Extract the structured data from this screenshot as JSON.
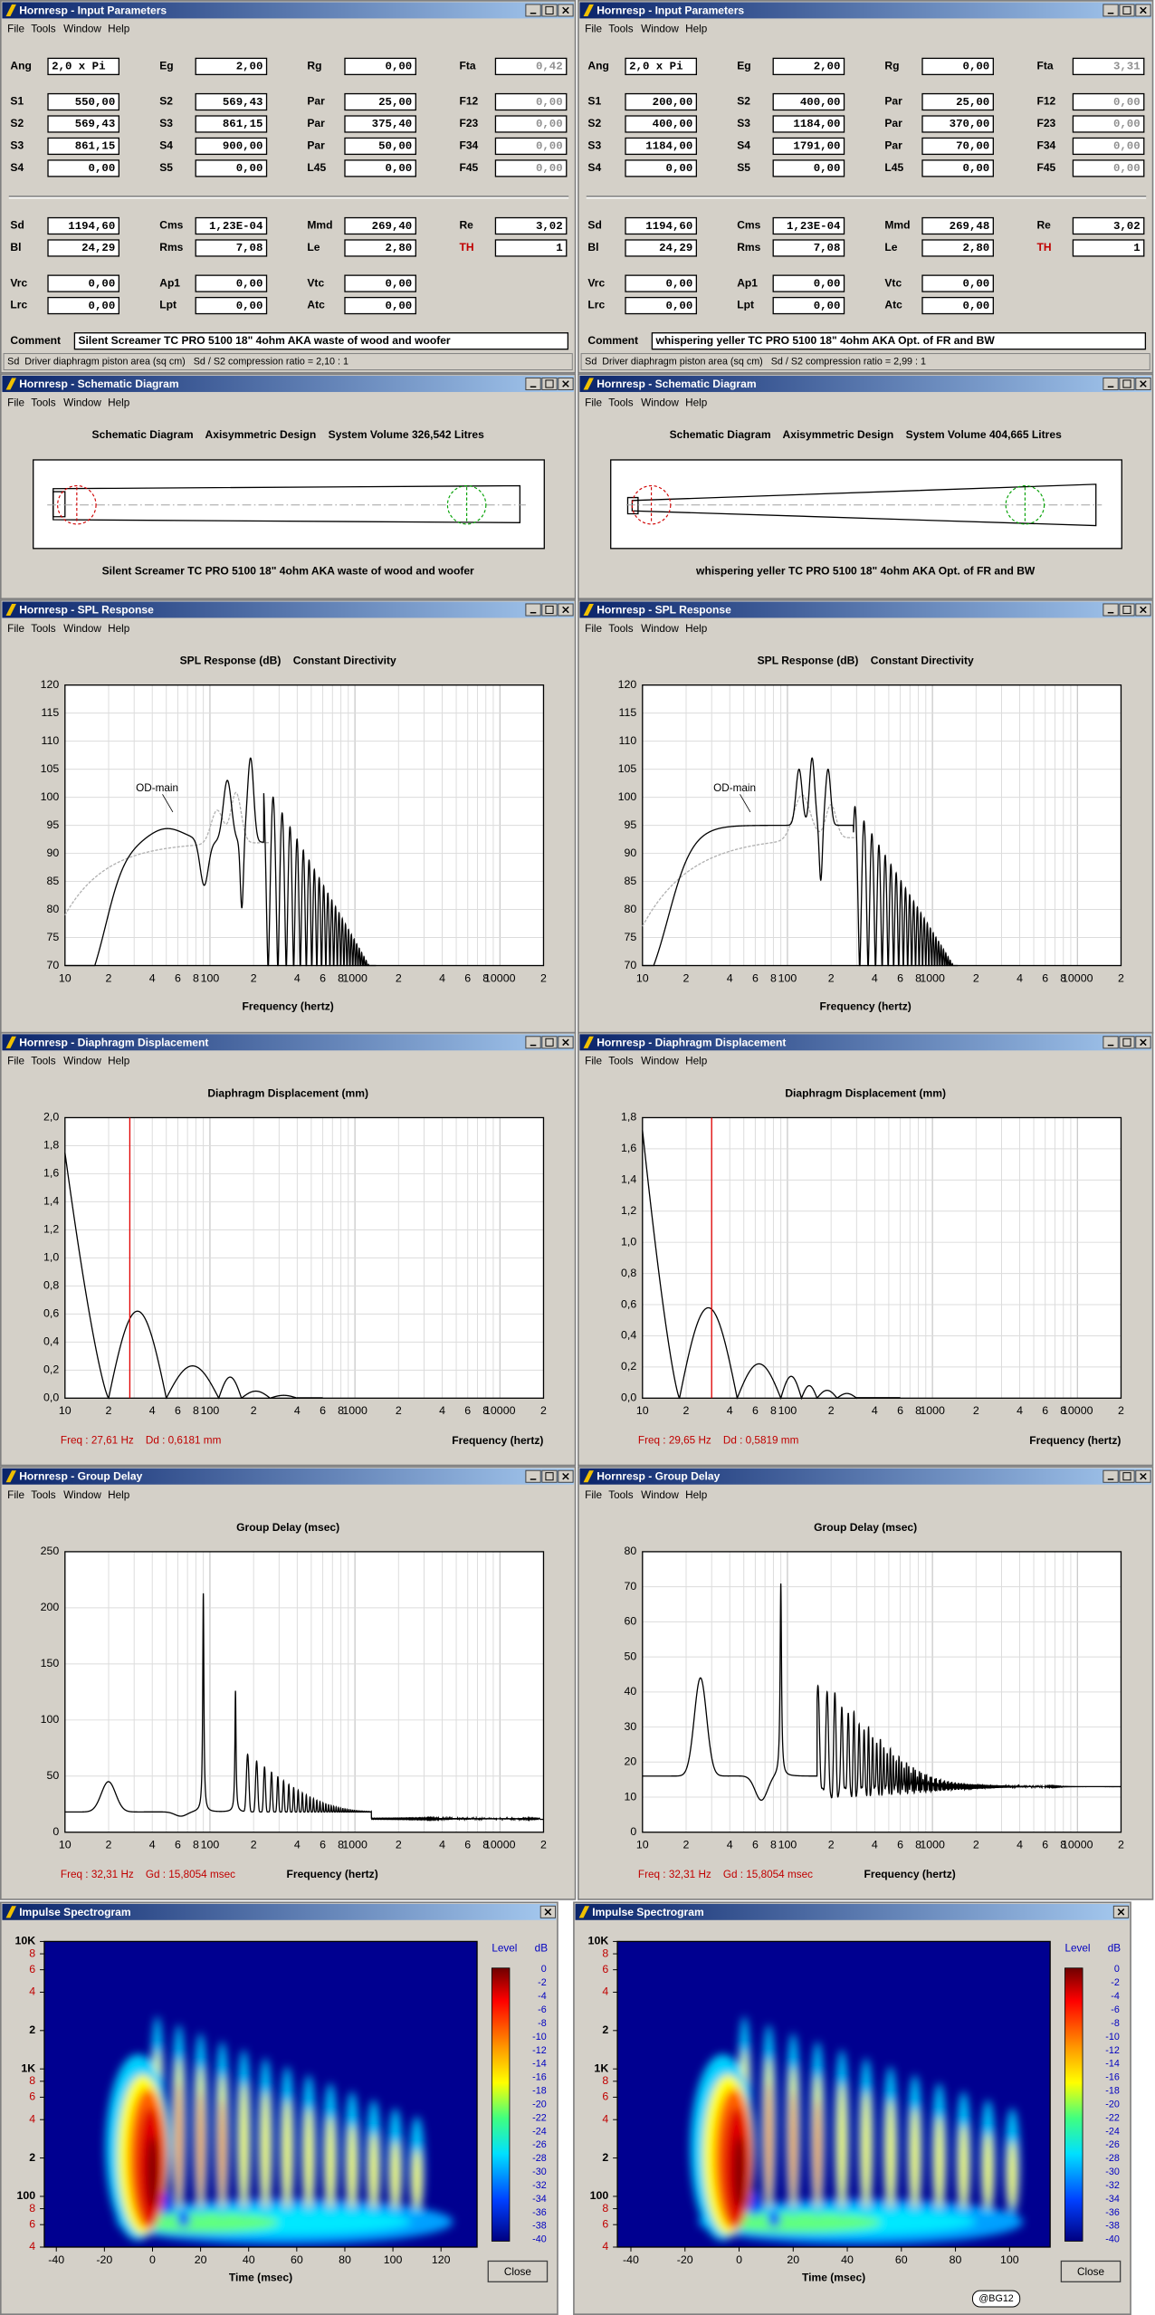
{
  "panels": [
    {
      "input": {
        "title": "Hornresp - Input Parameters",
        "menu": [
          "File",
          "Tools",
          "Window",
          "Help"
        ],
        "fields": [
          [
            [
              "Ang",
              "2,0 x Pi"
            ],
            [
              "Eg",
              "2,00"
            ],
            [
              "Rg",
              "0,00"
            ],
            [
              "Fta",
              "0,42"
            ]
          ],
          [
            [
              "S1",
              "550,00"
            ],
            [
              "S2",
              "569,43"
            ],
            [
              "Par",
              "25,00"
            ],
            [
              "F12",
              "0,00"
            ]
          ],
          [
            [
              "S2",
              "569,43"
            ],
            [
              "S3",
              "861,15"
            ],
            [
              "Par",
              "375,40"
            ],
            [
              "F23",
              "0,00"
            ]
          ],
          [
            [
              "S3",
              "861,15"
            ],
            [
              "S4",
              "900,00"
            ],
            [
              "Par",
              "50,00"
            ],
            [
              "F34",
              "0,00"
            ]
          ],
          [
            [
              "S4",
              "0,00"
            ],
            [
              "S5",
              "0,00"
            ],
            [
              "L45",
              "0,00"
            ],
            [
              "F45",
              "0,00"
            ]
          ],
          [
            [
              "Sd",
              "1194,60"
            ],
            [
              "Cms",
              "1,23E-04"
            ],
            [
              "Mmd",
              "269,40"
            ],
            [
              "Re",
              "3,02"
            ]
          ],
          [
            [
              "Bl",
              "24,29"
            ],
            [
              "Rms",
              "7,08"
            ],
            [
              "Le",
              "2,80"
            ],
            [
              "TH",
              "1"
            ]
          ],
          [
            [
              "Vrc",
              "0,00"
            ],
            [
              "Ap1",
              "0,00"
            ],
            [
              "Vtc",
              "0,00"
            ]
          ],
          [
            [
              "Lrc",
              "0,00"
            ],
            [
              "Lpt",
              "0,00"
            ],
            [
              "Atc",
              "0,00"
            ]
          ]
        ],
        "comment_label": "Comment",
        "comment": "Silent Screamer TC PRO 5100 18\" 4ohm AKA waste of wood and woofer",
        "status": "Sd  Driver diaphragm piston area (sq cm)   Sd / S2 compression ratio = 2,10 : 1"
      },
      "schematic": {
        "title": "Hornresp - Schematic Diagram",
        "menu": [
          "File",
          "Tools",
          "Window",
          "Help"
        ],
        "heading": "Schematic Diagram    Axisymmetric Design    System Volume 326,542 Litres",
        "caption": "Silent Screamer TC PRO 5100 18\" 4ohm AKA waste of wood and woofer"
      },
      "spl": {
        "title": "Hornresp - SPL Response",
        "menu": [
          "File",
          "Tools",
          "Window",
          "Help"
        ],
        "heading": "SPL Response (dB)    Constant Directivity",
        "yticks": [
          "120",
          "115",
          "110",
          "105",
          "100",
          "95",
          "90",
          "85",
          "80",
          "75",
          "70"
        ],
        "xticks": [
          "10",
          "2",
          "4",
          "6",
          "8",
          "100",
          "2",
          "4",
          "6",
          "8",
          "1000",
          "2",
          "4",
          "6",
          "8",
          "10000",
          "2"
        ],
        "xlabel": "Frequency (hertz)",
        "annotation": "OD-main"
      },
      "displacement": {
        "title": "Hornresp - Diaphragm Displacement",
        "menu": [
          "File",
          "Tools",
          "Window",
          "Help"
        ],
        "heading": "Diaphragm Displacement (mm)",
        "yticks": [
          "2,0",
          "1,8",
          "1,6",
          "1,4",
          "1,2",
          "1,0",
          "0,8",
          "0,6",
          "0,4",
          "0,2",
          "0,0"
        ],
        "xticks": [
          "10",
          "2",
          "4",
          "6",
          "8",
          "100",
          "2",
          "4",
          "6",
          "8",
          "1000",
          "2",
          "4",
          "6",
          "8",
          "10000",
          "2"
        ],
        "xlabel": "Frequency (hertz)",
        "readout": "Freq : 27,61 Hz    Dd : 0,6181 mm"
      },
      "group_delay": {
        "title": "Hornresp - Group Delay",
        "menu": [
          "File",
          "Tools",
          "Window",
          "Help"
        ],
        "heading": "Group Delay (msec)",
        "yticks": [
          "250",
          "200",
          "150",
          "100",
          "50",
          "0"
        ],
        "xticks": [
          "10",
          "2",
          "4",
          "6",
          "8",
          "100",
          "2",
          "4",
          "6",
          "8",
          "1000",
          "2",
          "4",
          "6",
          "8",
          "10000",
          "2"
        ],
        "xlabel": "Frequency (hertz)",
        "readout": "Freq : 32,31 Hz    Gd : 15,8054 msec"
      },
      "spectrogram": {
        "title": "Impulse Spectrogram",
        "yticks": [
          "10K",
          "8",
          "6",
          "4",
          "2",
          "1K",
          "8",
          "6",
          "4",
          "2",
          "100",
          "8",
          "6",
          "4"
        ],
        "xticks": [
          -40,
          -20,
          0,
          20,
          40,
          60,
          80,
          100,
          120
        ],
        "xlabel": "Time (msec)",
        "legend_title": "Level",
        "legend_unit": "dB",
        "levels": [
          "0",
          "-2",
          "-4",
          "-6",
          "-8",
          "-10",
          "-12",
          "-14",
          "-16",
          "-18",
          "-20",
          "-22",
          "-24",
          "-26",
          "-28",
          "-30",
          "-32",
          "-34",
          "-36",
          "-38",
          "-40"
        ],
        "button": "Close"
      }
    },
    {
      "input": {
        "title": "Hornresp - Input Parameters",
        "menu": [
          "File",
          "Tools",
          "Window",
          "Help"
        ],
        "fields": [
          [
            [
              "Ang",
              "2,0 x Pi"
            ],
            [
              "Eg",
              "2,00"
            ],
            [
              "Rg",
              "0,00"
            ],
            [
              "Fta",
              "3,31"
            ]
          ],
          [
            [
              "S1",
              "200,00"
            ],
            [
              "S2",
              "400,00"
            ],
            [
              "Par",
              "25,00"
            ],
            [
              "F12",
              "0,00"
            ]
          ],
          [
            [
              "S2",
              "400,00"
            ],
            [
              "S3",
              "1184,00"
            ],
            [
              "Par",
              "370,00"
            ],
            [
              "F23",
              "0,00"
            ]
          ],
          [
            [
              "S3",
              "1184,00"
            ],
            [
              "S4",
              "1791,00"
            ],
            [
              "Par",
              "70,00"
            ],
            [
              "F34",
              "0,00"
            ]
          ],
          [
            [
              "S4",
              "0,00"
            ],
            [
              "S5",
              "0,00"
            ],
            [
              "L45",
              "0,00"
            ],
            [
              "F45",
              "0,00"
            ]
          ],
          [
            [
              "Sd",
              "1194,60"
            ],
            [
              "Cms",
              "1,23E-04"
            ],
            [
              "Mmd",
              "269,48"
            ],
            [
              "Re",
              "3,02"
            ]
          ],
          [
            [
              "Bl",
              "24,29"
            ],
            [
              "Rms",
              "7,08"
            ],
            [
              "Le",
              "2,80"
            ],
            [
              "TH",
              "1"
            ]
          ],
          [
            [
              "Vrc",
              "0,00"
            ],
            [
              "Ap1",
              "0,00"
            ],
            [
              "Vtc",
              "0,00"
            ]
          ],
          [
            [
              "Lrc",
              "0,00"
            ],
            [
              "Lpt",
              "0,00"
            ],
            [
              "Atc",
              "0,00"
            ]
          ]
        ],
        "comment_label": "Comment",
        "comment": "whispering yeller TC PRO 5100 18\" 4ohm AKA Opt. of FR and BW",
        "status": "Sd  Driver diaphragm piston area (sq cm)   Sd / S2 compression ratio = 2,99 : 1"
      },
      "schematic": {
        "title": "Hornresp - Schematic Diagram",
        "menu": [
          "File",
          "Tools",
          "Window",
          "Help"
        ],
        "heading": "Schematic Diagram    Axisymmetric Design    System Volume 404,665 Litres",
        "caption": "whispering yeller TC PRO 5100 18\" 4ohm AKA Opt. of FR and BW"
      },
      "spl": {
        "title": "Hornresp - SPL Response",
        "menu": [
          "File",
          "Tools",
          "Window",
          "Help"
        ],
        "heading": "SPL Response (dB)    Constant Directivity",
        "yticks": [
          "120",
          "115",
          "110",
          "105",
          "100",
          "95",
          "90",
          "85",
          "80",
          "75",
          "70"
        ],
        "xticks": [
          "10",
          "2",
          "4",
          "6",
          "8",
          "100",
          "2",
          "4",
          "6",
          "8",
          "1000",
          "2",
          "4",
          "6",
          "8",
          "10000",
          "2"
        ],
        "xlabel": "Frequency (hertz)",
        "annotation": "OD-main"
      },
      "displacement": {
        "title": "Hornresp - Diaphragm Displacement",
        "menu": [
          "File",
          "Tools",
          "Window",
          "Help"
        ],
        "heading": "Diaphragm Displacement (mm)",
        "yticks": [
          "1,8",
          "1,6",
          "1,4",
          "1,2",
          "1,0",
          "0,8",
          "0,6",
          "0,4",
          "0,2",
          "0,0"
        ],
        "xticks": [
          "10",
          "2",
          "4",
          "6",
          "8",
          "100",
          "2",
          "4",
          "6",
          "8",
          "1000",
          "2",
          "4",
          "6",
          "8",
          "10000",
          "2"
        ],
        "xlabel": "Frequency (hertz)",
        "readout": "Freq : 29,65 Hz    Dd : 0,5819 mm"
      },
      "group_delay": {
        "title": "Hornresp - Group Delay",
        "menu": [
          "File",
          "Tools",
          "Window",
          "Help"
        ],
        "heading": "Group Delay (msec)",
        "yticks": [
          "80",
          "70",
          "60",
          "50",
          "40",
          "30",
          "20",
          "10",
          "0"
        ],
        "xticks": [
          "10",
          "2",
          "4",
          "6",
          "8",
          "100",
          "2",
          "4",
          "6",
          "8",
          "1000",
          "2",
          "4",
          "6",
          "8",
          "10000",
          "2"
        ],
        "xlabel": "Frequency (hertz)",
        "readout": "Freq : 32,31 Hz    Gd : 15,8054 msec"
      },
      "spectrogram": {
        "title": "Impulse Spectrogram",
        "yticks": [
          "10K",
          "8",
          "6",
          "4",
          "2",
          "1K",
          "8",
          "6",
          "4",
          "2",
          "100",
          "8",
          "6",
          "4"
        ],
        "xticks": [
          -40,
          -20,
          0,
          20,
          40,
          60,
          80,
          100
        ],
        "xlabel": "Time (msec)",
        "legend_title": "Level",
        "legend_unit": "dB",
        "levels": [
          "0",
          "-2",
          "-4",
          "-6",
          "-8",
          "-10",
          "-12",
          "-14",
          "-16",
          "-18",
          "-20",
          "-22",
          "-24",
          "-26",
          "-28",
          "-30",
          "-32",
          "-34",
          "-36",
          "-38",
          "-40"
        ],
        "button": "Close"
      }
    }
  ],
  "watermark": "@BG12"
}
